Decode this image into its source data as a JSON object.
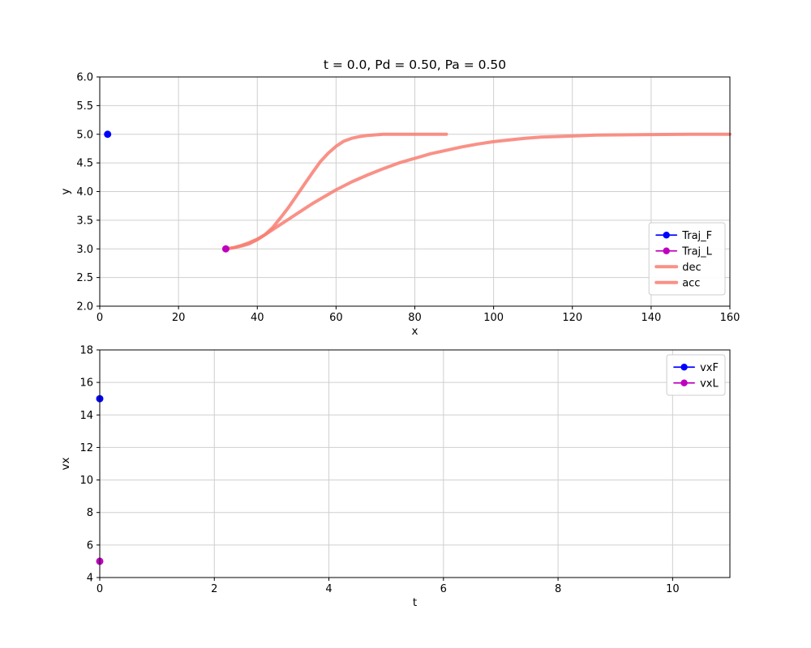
{
  "figure": {
    "background": "#ffffff"
  },
  "chart_data": [
    {
      "type": "line",
      "title": "t = 0.0, Pd = 0.50, Pa = 0.50",
      "xlabel": "x",
      "ylabel": "y",
      "xlim": [
        0,
        160
      ],
      "ylim": [
        2.0,
        6.0
      ],
      "xticks": [
        0,
        20,
        40,
        60,
        80,
        100,
        120,
        140,
        160
      ],
      "xticklabels": [
        "0",
        "20",
        "40",
        "60",
        "80",
        "100",
        "120",
        "140",
        "160"
      ],
      "yticks": [
        2.0,
        2.5,
        3.0,
        3.5,
        4.0,
        4.5,
        5.0,
        5.5,
        6.0
      ],
      "yticklabels": [
        "2.0",
        "2.5",
        "3.0",
        "3.5",
        "4.0",
        "4.5",
        "5.0",
        "5.5",
        "6.0"
      ],
      "grid": true,
      "legend": {
        "position": "lower right"
      },
      "series": [
        {
          "name": "Traj_F",
          "type": "marker",
          "color": "#0000ff",
          "marker_size": 4.5,
          "points": [
            [
              2,
              5.0
            ]
          ]
        },
        {
          "name": "Traj_L",
          "type": "marker",
          "color": "#bf00bf",
          "marker_size": 4.5,
          "points": [
            [
              32,
              3.0
            ]
          ]
        },
        {
          "name": "dec",
          "type": "line",
          "color": "#f87e72",
          "line_width": 4,
          "opacity": 0.85,
          "points": [
            [
              32,
              3.0
            ],
            [
              34,
              3.02
            ],
            [
              36,
              3.05
            ],
            [
              38,
              3.09
            ],
            [
              40,
              3.16
            ],
            [
              42,
              3.25
            ],
            [
              44,
              3.38
            ],
            [
              46,
              3.55
            ],
            [
              48,
              3.73
            ],
            [
              50,
              3.93
            ],
            [
              52,
              4.13
            ],
            [
              54,
              4.33
            ],
            [
              56,
              4.52
            ],
            [
              58,
              4.67
            ],
            [
              60,
              4.79
            ],
            [
              62,
              4.88
            ],
            [
              64,
              4.93
            ],
            [
              66,
              4.96
            ],
            [
              68,
              4.98
            ],
            [
              70,
              4.99
            ],
            [
              72,
              5.0
            ],
            [
              76,
              5.0
            ],
            [
              80,
              5.0
            ],
            [
              84,
              5.0
            ],
            [
              88,
              5.0
            ]
          ]
        },
        {
          "name": "acc",
          "type": "line",
          "color": "#f87e72",
          "line_width": 4,
          "opacity": 0.85,
          "points": [
            [
              32,
              3.0
            ],
            [
              34,
              3.02
            ],
            [
              36,
              3.06
            ],
            [
              38,
              3.11
            ],
            [
              40,
              3.17
            ],
            [
              42,
              3.25
            ],
            [
              44,
              3.34
            ],
            [
              46,
              3.43
            ],
            [
              48,
              3.52
            ],
            [
              50,
              3.61
            ],
            [
              52,
              3.7
            ],
            [
              54,
              3.79
            ],
            [
              56,
              3.87
            ],
            [
              58,
              3.95
            ],
            [
              60,
              4.03
            ],
            [
              64,
              4.17
            ],
            [
              68,
              4.29
            ],
            [
              72,
              4.4
            ],
            [
              76,
              4.5
            ],
            [
              80,
              4.58
            ],
            [
              84,
              4.66
            ],
            [
              88,
              4.72
            ],
            [
              92,
              4.78
            ],
            [
              96,
              4.83
            ],
            [
              100,
              4.87
            ],
            [
              104,
              4.9
            ],
            [
              108,
              4.93
            ],
            [
              112,
              4.95
            ],
            [
              116,
              4.96
            ],
            [
              120,
              4.97
            ],
            [
              126,
              4.985
            ],
            [
              132,
              4.99
            ],
            [
              140,
              4.995
            ],
            [
              150,
              5.0
            ],
            [
              160,
              5.0
            ]
          ]
        }
      ]
    },
    {
      "type": "line",
      "title": "",
      "xlabel": "t",
      "ylabel": "vx",
      "xlim": [
        0,
        11
      ],
      "ylim": [
        4,
        18
      ],
      "xticks": [
        0,
        2,
        4,
        6,
        8,
        10
      ],
      "xticklabels": [
        "0",
        "2",
        "4",
        "6",
        "8",
        "10"
      ],
      "yticks": [
        4,
        6,
        8,
        10,
        12,
        14,
        16,
        18
      ],
      "yticklabels": [
        "4",
        "6",
        "8",
        "10",
        "12",
        "14",
        "16",
        "18"
      ],
      "grid": true,
      "legend": {
        "position": "upper right"
      },
      "series": [
        {
          "name": "vxF",
          "type": "marker",
          "color": "#0000ff",
          "marker_size": 4.5,
          "points": [
            [
              0,
              15
            ]
          ]
        },
        {
          "name": "vxL",
          "type": "marker",
          "color": "#bf00bf",
          "marker_size": 4.5,
          "points": [
            [
              0,
              5
            ]
          ]
        }
      ]
    }
  ]
}
